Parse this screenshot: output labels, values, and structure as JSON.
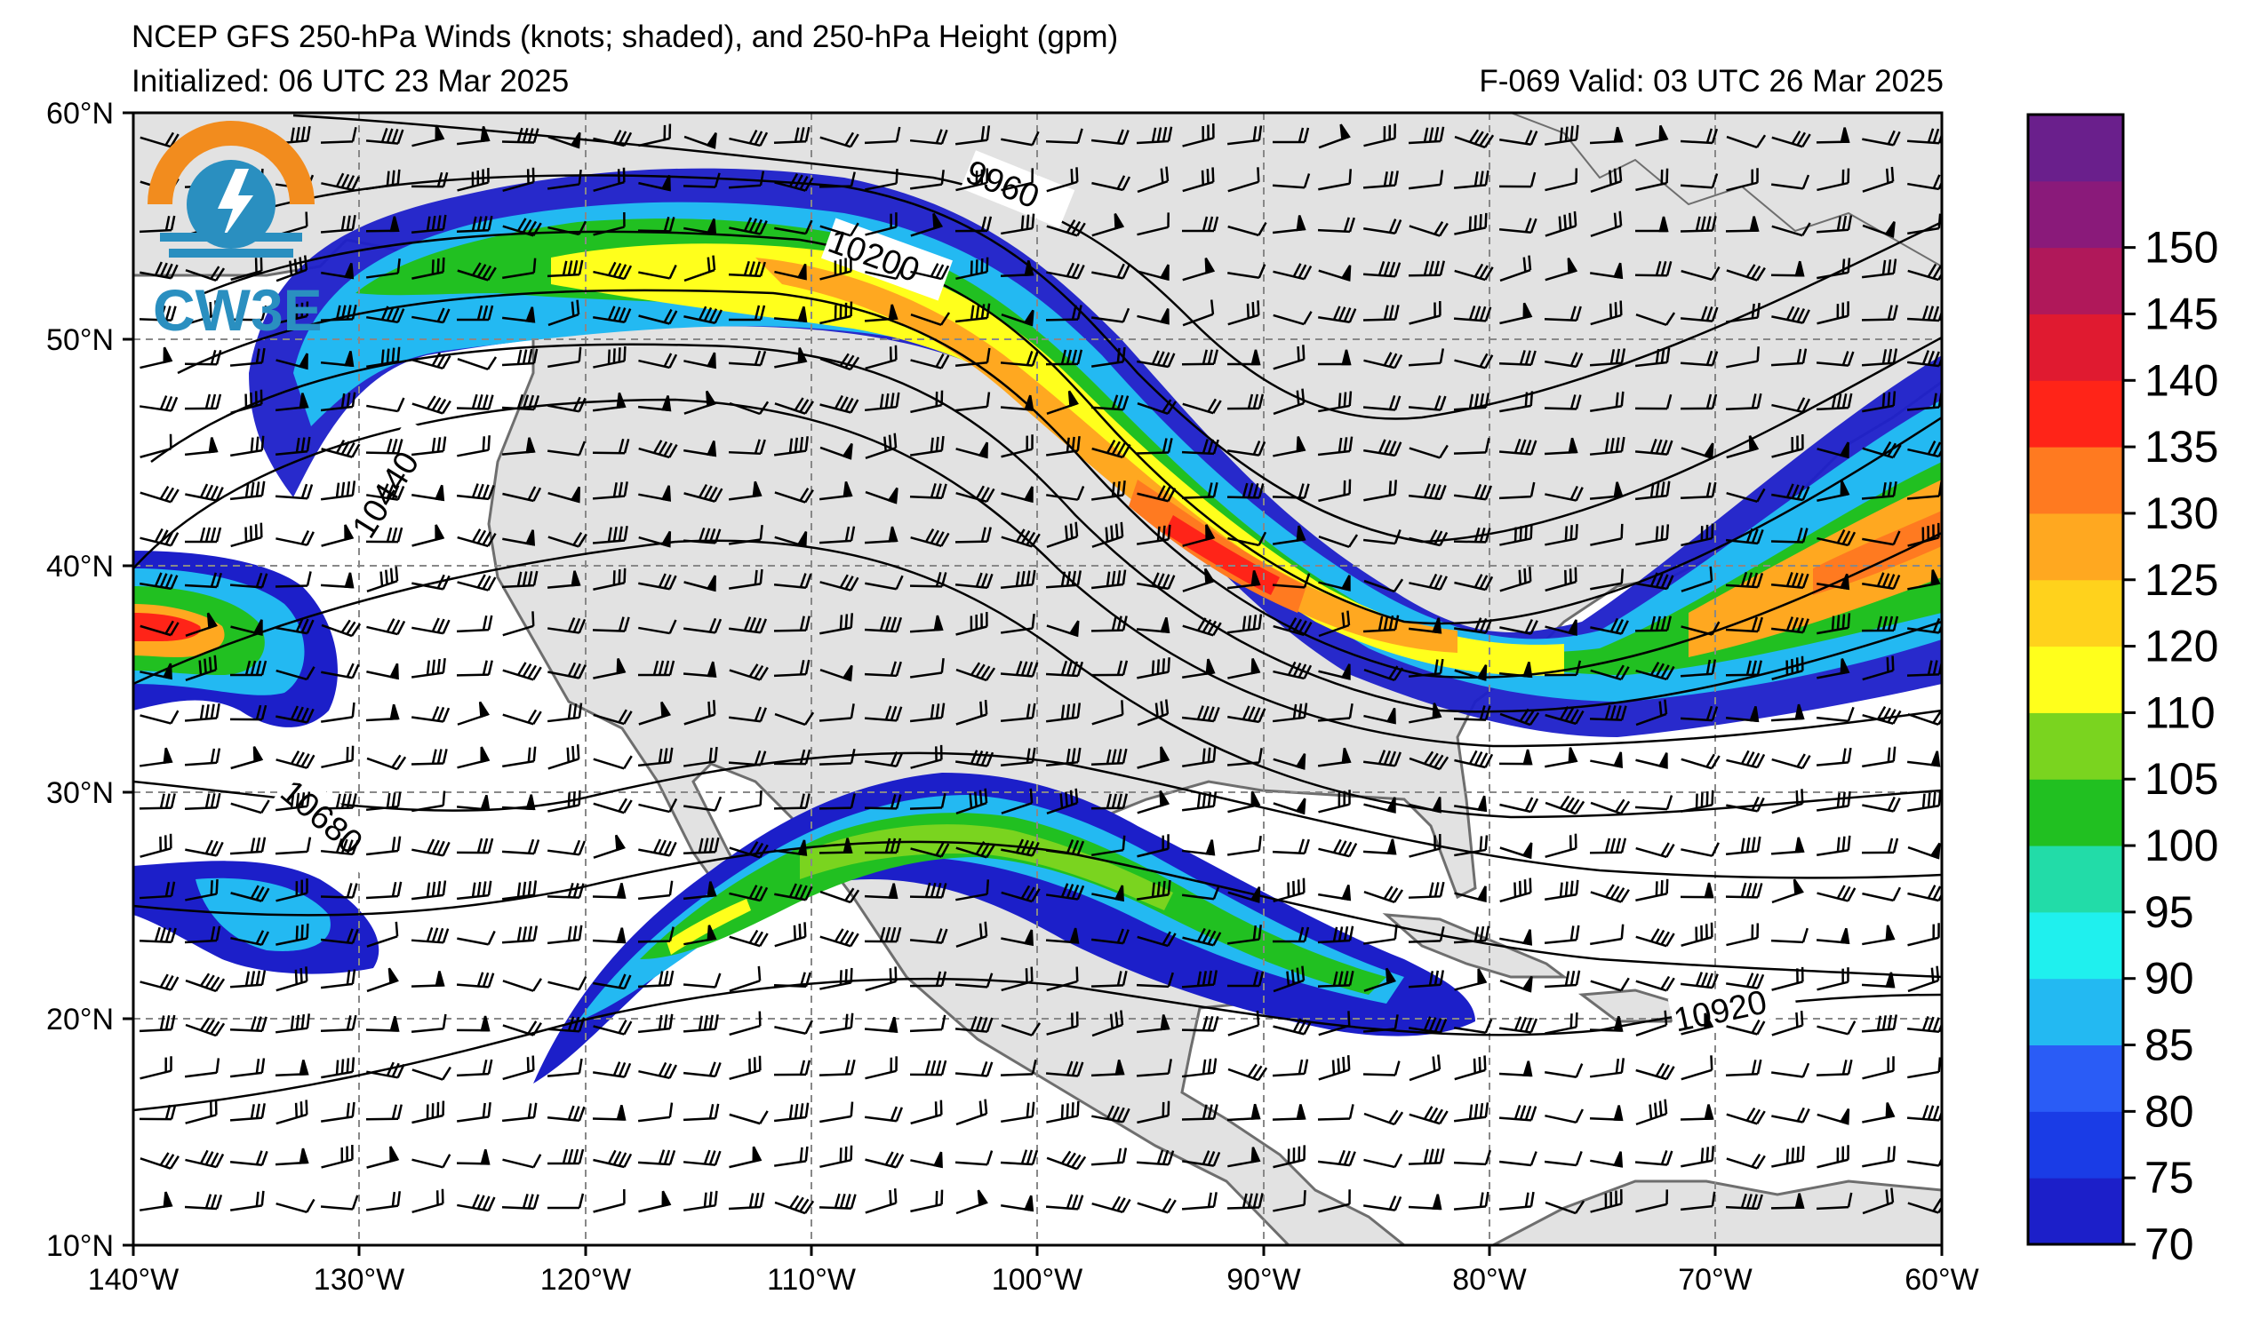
{
  "title": {
    "main": "NCEP GFS 250-hPa Winds (knots; shaded), and 250-hPa Height (gpm)",
    "initialized": "Initialized: 06 UTC 23 Mar 2025",
    "valid": "F-069  Valid: 03 UTC 26 Mar 2025"
  },
  "logo": {
    "text": "CW3E",
    "icon": "cw3e-logo-icon"
  },
  "axes": {
    "lat_labels": [
      "60°N",
      "50°N",
      "40°N",
      "30°N",
      "20°N",
      "10°N"
    ],
    "lon_labels": [
      "140°W",
      "130°W",
      "120°W",
      "110°W",
      "100°W",
      "90°W",
      "80°W",
      "70°W",
      "60°W"
    ]
  },
  "contour_labels": [
    "9960",
    "10200",
    "10440",
    "10680",
    "10920"
  ],
  "colorbar": {
    "labels": [
      "70",
      "75",
      "80",
      "85",
      "90",
      "95",
      "100",
      "105",
      "110",
      "120",
      "125",
      "130",
      "135",
      "140",
      "145",
      "150"
    ],
    "colors": [
      "#1c1fc9",
      "#1a3ce6",
      "#2a5cf6",
      "#23b9f2",
      "#1ff0ee",
      "#22dca8",
      "#21c021",
      "#7ad41f",
      "#ffff1c",
      "#ffd21c",
      "#ffa820",
      "#ff7a20",
      "#ff2418",
      "#e01a30",
      "#b0185a",
      "#8a1a7a",
      "#6a1f8c"
    ]
  },
  "colors": {
    "land": "#e2e2e2",
    "ocean": "#ffffff",
    "coast": "#6e6e6e",
    "grid": "#888888"
  }
}
